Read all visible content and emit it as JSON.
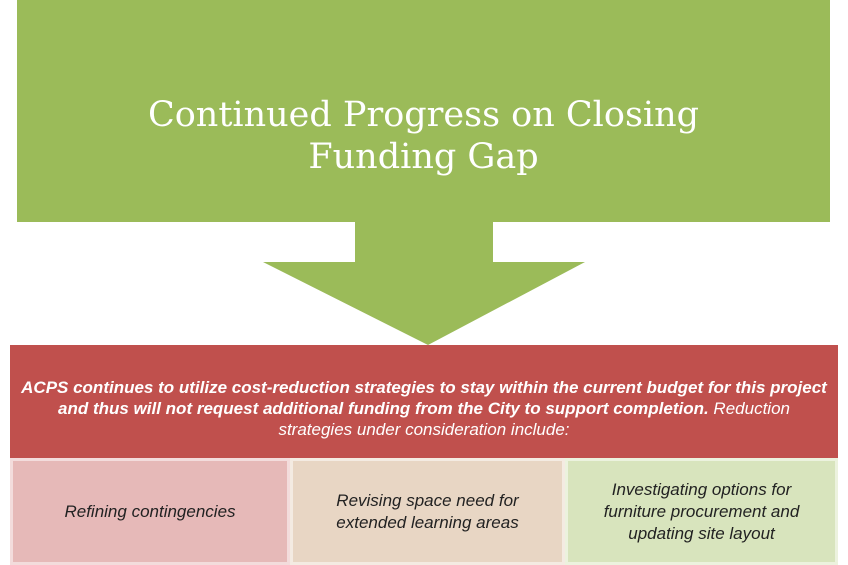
{
  "header": {
    "title": "Continued Progress on Closing Funding Gap"
  },
  "summary": {
    "bold_text": "ACPS continues to utilize cost-reduction strategies to stay within the current budget for this project and thus will not request additional funding from the City to support completion.",
    "rest_text": " Reduction strategies under consideration include:"
  },
  "strategies": [
    "Refining contingencies",
    "Revising space need for extended learning areas",
    "Investigating options for furniture procurement and updating site layout"
  ]
}
